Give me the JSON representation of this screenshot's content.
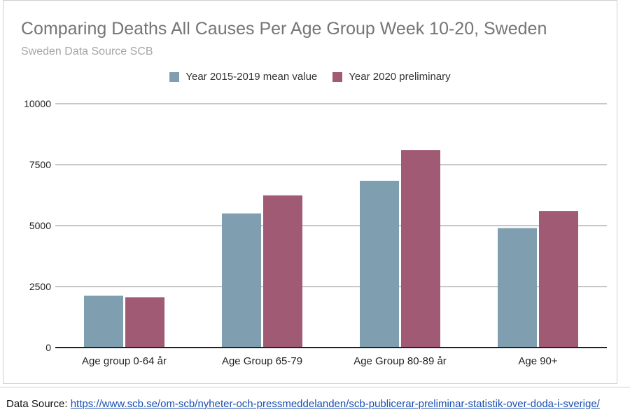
{
  "chart_data": {
    "type": "bar",
    "title": "Comparing Deaths All Causes Per Age Group Week 10-20, Sweden",
    "subtitle": "Sweden Data Source SCB",
    "categories": [
      "Age group 0-64 år",
      "Age Group 65-79",
      "Age Group 80-89 år",
      "Age 90+"
    ],
    "series": [
      {
        "name": "Year 2015-2019 mean value",
        "color": "#7f9fb0",
        "values": [
          2130,
          5500,
          6840,
          4900
        ]
      },
      {
        "name": "Year 2020 preliminary",
        "color": "#a05a74",
        "values": [
          2060,
          6240,
          8100,
          5600
        ]
      }
    ],
    "y_ticks": [
      0,
      2500,
      5000,
      7500,
      10000
    ],
    "ylim": [
      0,
      10000
    ],
    "xlabel": "",
    "ylabel": "",
    "grid": true,
    "legend_position": "top-center"
  },
  "footer": {
    "label": "Data Source: ",
    "url_text": "https://www.scb.se/om-scb/nyheter-och-pressmeddelanden/scb-publicerar-preliminar-statistik-over-doda-i-sverige/"
  }
}
